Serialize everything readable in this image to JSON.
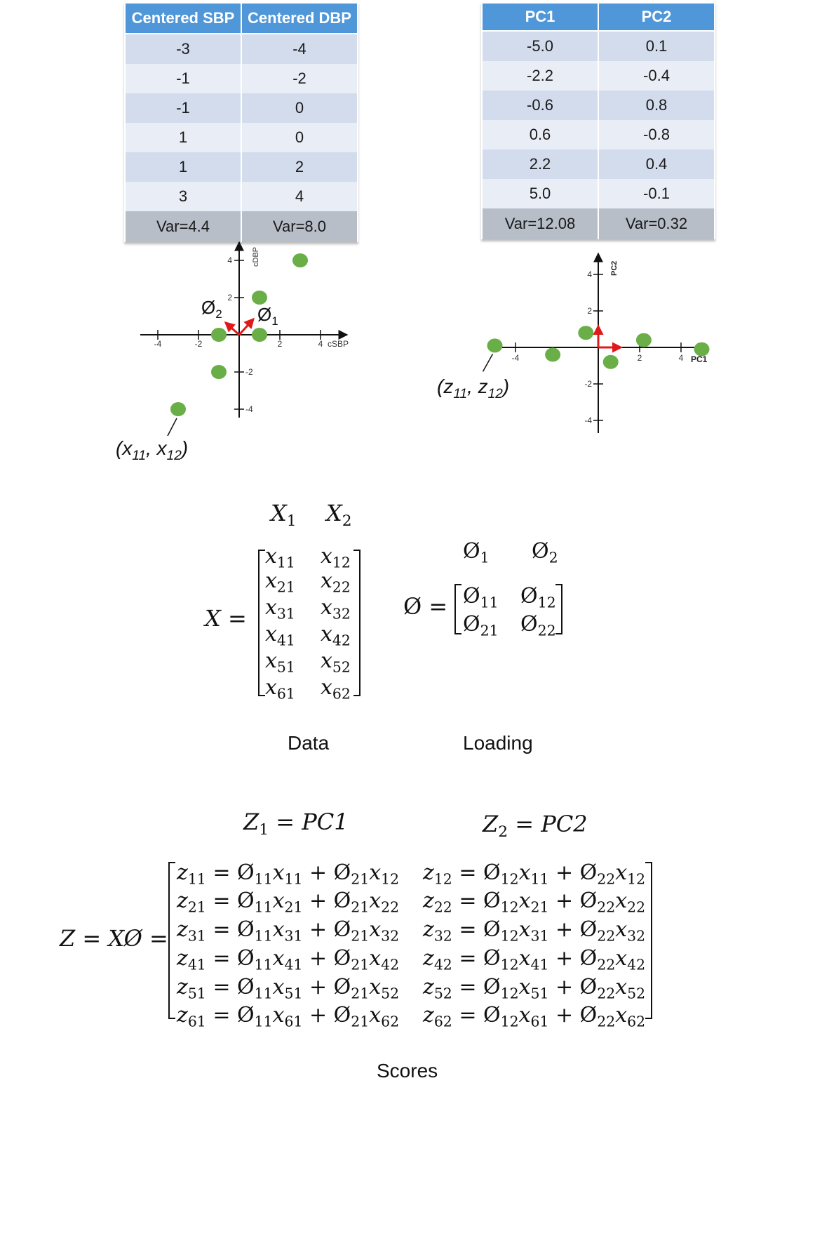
{
  "left_table": {
    "headers": [
      "Centered SBP",
      "Centered DBP"
    ],
    "rows": [
      [
        "-3",
        "-4"
      ],
      [
        "-1",
        "-2"
      ],
      [
        "-1",
        "0"
      ],
      [
        "1",
        "0"
      ],
      [
        "1",
        "2"
      ],
      [
        "3",
        "4"
      ]
    ],
    "variance": [
      "Var=4.4",
      "Var=8.0"
    ]
  },
  "right_table": {
    "headers": [
      "PC1",
      "PC2"
    ],
    "rows": [
      [
        "-5.0",
        "0.1"
      ],
      [
        "-2.2",
        "-0.4"
      ],
      [
        "-0.6",
        "0.8"
      ],
      [
        "0.6",
        "-0.8"
      ],
      [
        "2.2",
        "0.4"
      ],
      [
        "5.0",
        "-0.1"
      ]
    ],
    "variance": [
      "Var=12.08",
      "Var=0.32"
    ]
  },
  "chart_data": [
    {
      "type": "scatter",
      "xlabel": "cSBP",
      "ylabel": "cDBP",
      "xticks": [
        "-4",
        "-2",
        "2",
        "4"
      ],
      "yticks": [
        "4",
        "2",
        "-2",
        "-4"
      ],
      "points": [
        [
          -3,
          -4
        ],
        [
          -1,
          -2
        ],
        [
          -1,
          0
        ],
        [
          1,
          0
        ],
        [
          1,
          2
        ],
        [
          3,
          4
        ]
      ],
      "vector_labels": [
        "Ø",
        "2",
        "Ø",
        "1"
      ],
      "point_annotation": [
        "(x",
        "11",
        ", x",
        "12",
        ")"
      ]
    },
    {
      "type": "scatter",
      "xlabel": "PC1",
      "ylabel": "PC2",
      "xticks": [
        "-4",
        "2",
        "4"
      ],
      "yticks": [
        "4",
        "2",
        "-2",
        "-4"
      ],
      "points": [
        [
          -5.0,
          0.1
        ],
        [
          -2.2,
          -0.4
        ],
        [
          -0.6,
          0.8
        ],
        [
          0.6,
          -0.8
        ],
        [
          2.2,
          0.4
        ],
        [
          5.0,
          -0.1
        ]
      ],
      "point_annotation": [
        "(z",
        "11",
        ", z",
        "12",
        ")"
      ]
    }
  ],
  "data_matrix": {
    "symbol": "X =",
    "col_headers": [
      [
        "X",
        "1"
      ],
      [
        "X",
        "2"
      ]
    ],
    "rows": [
      [
        "11",
        "12"
      ],
      [
        "21",
        "22"
      ],
      [
        "31",
        "32"
      ],
      [
        "41",
        "42"
      ],
      [
        "51",
        "52"
      ],
      [
        "61",
        "62"
      ]
    ],
    "var": "x",
    "caption": "Data"
  },
  "loading_matrix": {
    "symbol": "Ø =",
    "col_headers": [
      [
        "Ø",
        "1"
      ],
      [
        "Ø",
        "2"
      ]
    ],
    "rows": [
      [
        "11",
        "12"
      ],
      [
        "21",
        "22"
      ]
    ],
    "var": "Ø",
    "caption": "Loading"
  },
  "scores_matrix": {
    "symbol": "Z = XØ =",
    "col_headers": [
      [
        "Z",
        "1",
        " = PC1"
      ],
      [
        "Z",
        "2",
        " = PC2"
      ]
    ],
    "row_indices": [
      "1",
      "2",
      "3",
      "4",
      "5",
      "6"
    ],
    "caption": "Scores"
  }
}
